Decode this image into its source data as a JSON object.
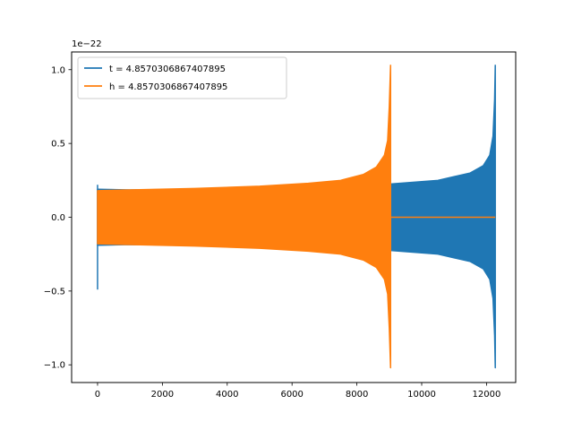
{
  "chart_data": {
    "type": "line",
    "title": "",
    "xlabel": "",
    "ylabel": "",
    "y_offset_label": "1e−22",
    "xlim": [
      -800,
      12900
    ],
    "ylim": [
      -1.12,
      1.12
    ],
    "x_ticks": [
      0,
      2000,
      4000,
      6000,
      8000,
      10000,
      12000
    ],
    "x_tick_labels": [
      "0",
      "2000",
      "4000",
      "6000",
      "8000",
      "10000",
      "12000"
    ],
    "y_ticks": [
      -1.0,
      -0.5,
      0.0,
      0.5,
      1.0
    ],
    "y_tick_labels": [
      "−1.0",
      "−0.5",
      "0.0",
      "0.5",
      "1.0"
    ],
    "grid": false,
    "legend_position": "upper-left",
    "series": [
      {
        "name": "t = 4.8570306867407895",
        "color": "#1f77b4",
        "merger_x": 12270,
        "envelope_x": [
          0,
          1000,
          3000,
          5000,
          7000,
          9000,
          10500,
          11500,
          11900,
          12100,
          12200,
          12250,
          12270
        ],
        "envelope_upper": [
          0.19,
          0.185,
          0.19,
          0.2,
          0.21,
          0.225,
          0.25,
          0.3,
          0.35,
          0.42,
          0.55,
          0.8,
          1.03
        ],
        "envelope_lower": [
          -0.19,
          -0.185,
          -0.19,
          -0.2,
          -0.21,
          -0.225,
          -0.25,
          -0.3,
          -0.35,
          -0.42,
          -0.55,
          -0.8,
          -1.02
        ],
        "start_spike": [
          0.22,
          -0.49
        ]
      },
      {
        "name": "h = 4.8570306867407895",
        "color": "#ff7f0e",
        "merger_x": 9040,
        "envelope_x": [
          0,
          1000,
          3000,
          5000,
          6500,
          7500,
          8200,
          8600,
          8850,
          8950,
          9000,
          9040
        ],
        "envelope_upper": [
          0.18,
          0.185,
          0.195,
          0.21,
          0.23,
          0.25,
          0.29,
          0.34,
          0.42,
          0.52,
          0.75,
          1.03
        ],
        "envelope_lower": [
          -0.18,
          -0.185,
          -0.195,
          -0.21,
          -0.23,
          -0.25,
          -0.29,
          -0.34,
          -0.42,
          -0.52,
          -0.75,
          -1.02
        ],
        "tail_x": [
          9040,
          12270
        ],
        "tail_y": [
          0.0,
          0.0
        ]
      }
    ]
  }
}
